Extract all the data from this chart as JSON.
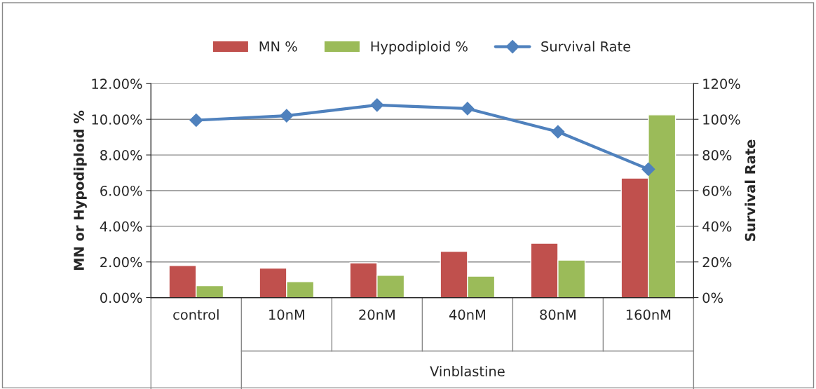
{
  "chart_data": {
    "type": "bar",
    "categories": [
      "control",
      "10nM",
      "20nM",
      "40nM",
      "80nM",
      "160nM"
    ],
    "series": [
      {
        "name": "MN %",
        "color": "#c0504d",
        "values": [
          1.8,
          1.65,
          1.95,
          2.6,
          3.05,
          6.7
        ]
      },
      {
        "name": "Hypodiploid %",
        "color": "#9bbb59",
        "values": [
          0.67,
          0.9,
          1.25,
          1.2,
          2.1,
          10.25
        ]
      },
      {
        "name": "Survival Rate",
        "type": "line",
        "axis": "y2",
        "color": "#4f81bd",
        "marker": "diamond",
        "values": [
          99.5,
          102,
          108,
          106,
          93,
          72
        ]
      }
    ],
    "ylabel": "MN or Hypodiploid %",
    "y2label": "Survival Rate",
    "ylim": [
      0,
      12
    ],
    "yticks": [
      {
        "value": 0,
        "label": "0.00%"
      },
      {
        "value": 2,
        "label": "2.00%"
      },
      {
        "value": 4,
        "label": "4.00%"
      },
      {
        "value": 6,
        "label": "6.00%"
      },
      {
        "value": 8,
        "label": "8.00%"
      },
      {
        "value": 10,
        "label": "10.00%"
      },
      {
        "value": 12,
        "label": "12.00%"
      }
    ],
    "y2lim": [
      0,
      120
    ],
    "y2ticks": [
      {
        "value": 0,
        "label": "0%"
      },
      {
        "value": 20,
        "label": "20%"
      },
      {
        "value": 40,
        "label": "40%"
      },
      {
        "value": 60,
        "label": "60%"
      },
      {
        "value": 80,
        "label": "80%"
      },
      {
        "value": 100,
        "label": "100%"
      },
      {
        "value": 120,
        "label": "120%"
      }
    ],
    "annotations": [
      "Vinblastine"
    ],
    "grid": "y",
    "legend": "top"
  }
}
